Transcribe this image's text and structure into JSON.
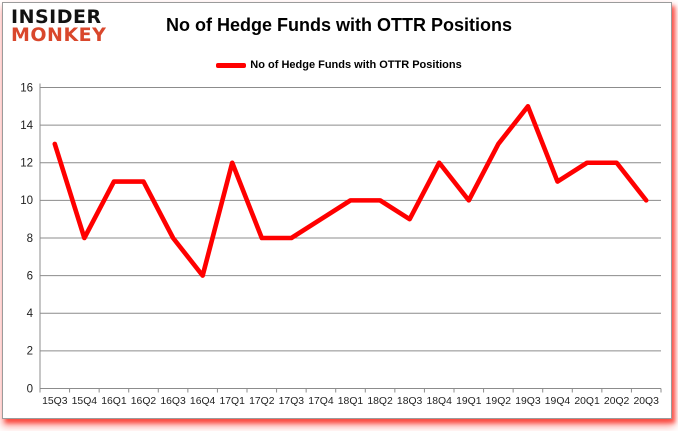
{
  "logo": {
    "line1": "INSIDER",
    "line2": "MONKEY"
  },
  "header": {
    "title": "No of Hedge Funds with OTTR Positions"
  },
  "legend": {
    "label": "No of Hedge Funds with OTTR Positions"
  },
  "chart_data": {
    "type": "line",
    "title": "No of Hedge Funds with OTTR Positions",
    "series": [
      {
        "name": "No of Hedge Funds with OTTR Positions",
        "values": [
          13,
          8,
          11,
          11,
          8,
          6,
          12,
          8,
          8,
          9,
          10,
          10,
          9,
          12,
          10,
          13,
          15,
          11,
          12,
          12,
          10
        ]
      }
    ],
    "categories": [
      "15Q3",
      "15Q4",
      "16Q1",
      "16Q2",
      "16Q3",
      "16Q4",
      "17Q1",
      "17Q2",
      "17Q3",
      "17Q4",
      "18Q1",
      "18Q2",
      "18Q3",
      "18Q4",
      "19Q1",
      "19Q2",
      "19Q3",
      "19Q4",
      "20Q1",
      "20Q2",
      "20Q3"
    ],
    "xlabel": "",
    "ylabel": "",
    "ylim": [
      0,
      16
    ],
    "yticks": [
      0,
      2,
      4,
      6,
      8,
      10,
      12,
      14,
      16
    ],
    "grid": true,
    "legend_position": "top"
  },
  "colors": {
    "series_line": "#ff0000",
    "gridline": "#8c8c8c",
    "axis": "#8c8c8c",
    "tick_label": "#1f1f1f",
    "logo_red": "#d9472c",
    "frame_border": "#9b9b9b",
    "frame_glow": "#fa281c"
  }
}
